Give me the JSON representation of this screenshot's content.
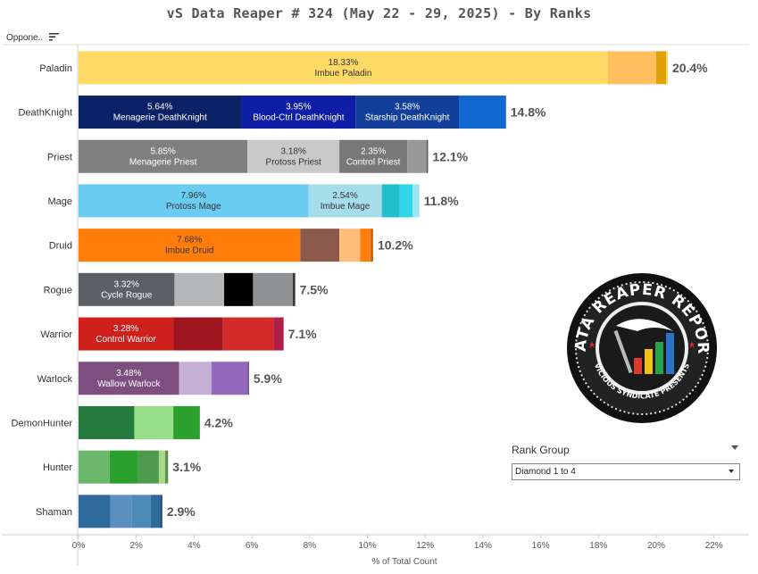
{
  "title": "vS Data Reaper #  324 (May 22 - 29, 2025) - By Ranks",
  "filter_label": "Oppone..",
  "rank_group": {
    "label": "Rank Group",
    "selected": "Diamond 1 to 4"
  },
  "logo": {
    "line1": "DATA REAPER REPORT",
    "line2": "VICIOUS SYNDICATE PRESENTS"
  },
  "chart_data": {
    "type": "bar",
    "orientation": "horizontal",
    "stacked": true,
    "title": "vS Data Reaper #  324 (May 22 - 29, 2025) - By Ranks",
    "xlabel": "% of Total Count",
    "ylabel": "",
    "xlim": [
      0,
      22.5
    ],
    "x_ticks": [
      0,
      2,
      4,
      6,
      8,
      10,
      12,
      14,
      16,
      18,
      20,
      22
    ],
    "x_tick_labels": [
      "0%",
      "2%",
      "4%",
      "6%",
      "8%",
      "10%",
      "12%",
      "14%",
      "16%",
      "18%",
      "20%",
      "22%"
    ],
    "categories": [
      {
        "name": "Paladin",
        "total": 20.4,
        "total_label": "20.4%",
        "segments": [
          {
            "value": 18.33,
            "color": "#FFD966",
            "pct_label": "18.33%",
            "name": "Imbue Paladin",
            "dark": true
          },
          {
            "value": 1.67,
            "color": "#FFBF5F"
          },
          {
            "value": 0.35,
            "color": "#E0A008"
          },
          {
            "value": 0.05,
            "color": "#FFD966"
          }
        ]
      },
      {
        "name": "DeathKnight",
        "total": 14.8,
        "total_label": "14.8%",
        "segments": [
          {
            "value": 5.64,
            "color": "#0B2266",
            "pct_label": "5.64%",
            "name": "Menagerie DeathKnight"
          },
          {
            "value": 3.95,
            "color": "#0E1FA6",
            "pct_label": "3.95%",
            "name": "Blood-Ctrl DeathKnight"
          },
          {
            "value": 3.58,
            "color": "#123F9A",
            "pct_label": "3.58%",
            "name": "Starship DeathKnight"
          },
          {
            "value": 1.63,
            "color": "#1067CF"
          }
        ]
      },
      {
        "name": "Priest",
        "total": 12.1,
        "total_label": "12.1%",
        "segments": [
          {
            "value": 5.85,
            "color": "#808080",
            "pct_label": "5.85%",
            "name": "Menagerie Priest"
          },
          {
            "value": 3.18,
            "color": "#C9C9C9",
            "pct_label": "3.18%",
            "name": "Protoss Priest",
            "dark": true
          },
          {
            "value": 2.35,
            "color": "#787878",
            "pct_label": "2.35%",
            "name": "Control Priest"
          },
          {
            "value": 0.67,
            "color": "#999999"
          },
          {
            "value": 0.05,
            "color": "#555555"
          }
        ]
      },
      {
        "name": "Mage",
        "total": 11.8,
        "total_label": "11.8%",
        "segments": [
          {
            "value": 7.96,
            "color": "#69CCF0",
            "pct_label": "7.96%",
            "name": "Protoss Mage",
            "dark": true
          },
          {
            "value": 2.54,
            "color": "#A6DDEA",
            "pct_label": "2.54%",
            "name": "Imbue Mage",
            "dark": true
          },
          {
            "value": 0.62,
            "color": "#1FBFCC"
          },
          {
            "value": 0.45,
            "color": "#33D6E8"
          },
          {
            "value": 0.23,
            "color": "#9BE6F0"
          }
        ]
      },
      {
        "name": "Druid",
        "total": 10.2,
        "total_label": "10.2%",
        "segments": [
          {
            "value": 7.68,
            "color": "#FF7D0A",
            "pct_label": "7.68%",
            "name": "Imbue Druid",
            "dark": true
          },
          {
            "value": 1.35,
            "color": "#8B5A4A"
          },
          {
            "value": 0.72,
            "color": "#FFBC7A"
          },
          {
            "value": 0.35,
            "color": "#FF7D0A"
          },
          {
            "value": 0.1,
            "color": "#C86A1E"
          }
        ]
      },
      {
        "name": "Rogue",
        "total": 7.5,
        "total_label": "7.5%",
        "segments": [
          {
            "value": 3.32,
            "color": "#5C6066",
            "pct_label": "3.32%",
            "name": "Cycle Rogue"
          },
          {
            "value": 1.72,
            "color": "#B5B7B9"
          },
          {
            "value": 1.0,
            "color": "#000000"
          },
          {
            "value": 1.38,
            "color": "#8E9092"
          },
          {
            "value": 0.08,
            "color": "#333333"
          }
        ]
      },
      {
        "name": "Warrior",
        "total": 7.1,
        "total_label": "7.1%",
        "segments": [
          {
            "value": 3.28,
            "color": "#D0201C",
            "pct_label": "3.28%",
            "name": "Control Warrior"
          },
          {
            "value": 1.72,
            "color": "#9E1520"
          },
          {
            "value": 1.75,
            "color": "#D42A2A"
          },
          {
            "value": 0.35,
            "color": "#B01E48"
          }
        ]
      },
      {
        "name": "Warlock",
        "total": 5.9,
        "total_label": "5.9%",
        "segments": [
          {
            "value": 3.48,
            "color": "#7D4F80",
            "pct_label": "3.48%",
            "name": "Wallow Warlock"
          },
          {
            "value": 1.12,
            "color": "#C5B0D5"
          },
          {
            "value": 1.25,
            "color": "#9467BD"
          },
          {
            "value": 0.05,
            "color": "#6B3F8F"
          }
        ]
      },
      {
        "name": "DemonHunter",
        "total": 4.2,
        "total_label": "4.2%",
        "segments": [
          {
            "value": 1.93,
            "color": "#257A3E"
          },
          {
            "value": 1.35,
            "color": "#98DF8A"
          },
          {
            "value": 0.92,
            "color": "#2CA02C"
          }
        ]
      },
      {
        "name": "Hunter",
        "total": 3.1,
        "total_label": "3.1%",
        "segments": [
          {
            "value": 1.08,
            "color": "#6BB86A"
          },
          {
            "value": 0.98,
            "color": "#2CA02C"
          },
          {
            "value": 0.72,
            "color": "#4E9A4E"
          },
          {
            "value": 0.22,
            "color": "#A8D98A"
          },
          {
            "value": 0.1,
            "color": "#5B8F4E"
          }
        ]
      },
      {
        "name": "Shaman",
        "total": 2.9,
        "total_label": "2.9%",
        "segments": [
          {
            "value": 1.1,
            "color": "#2E6A9C"
          },
          {
            "value": 0.75,
            "color": "#5A8FBF"
          },
          {
            "value": 0.65,
            "color": "#4C8AB8"
          },
          {
            "value": 0.33,
            "color": "#2E6A9C"
          },
          {
            "value": 0.07,
            "color": "#1F4E79"
          }
        ]
      }
    ]
  }
}
